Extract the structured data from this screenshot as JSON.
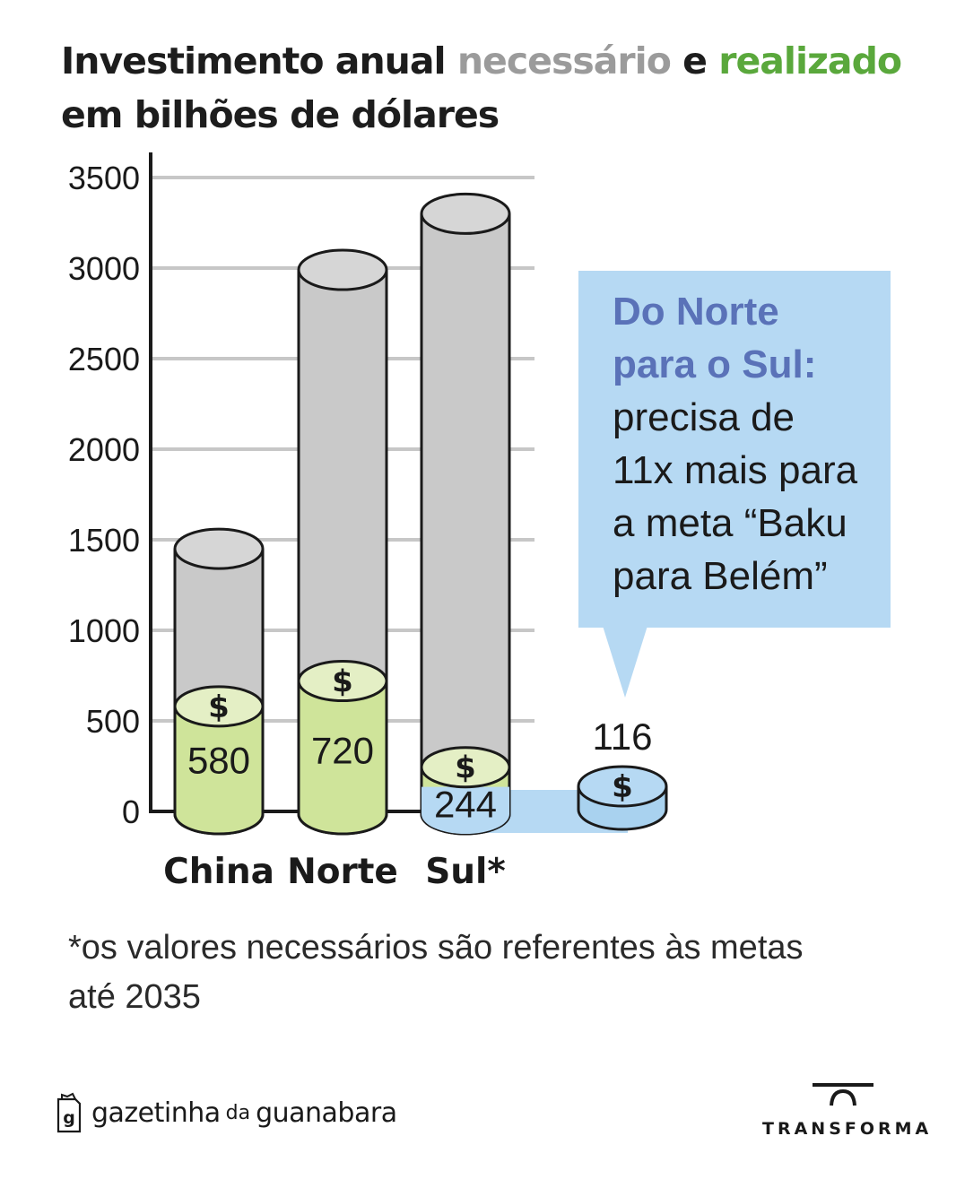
{
  "title": {
    "part1": "Investimento anual ",
    "part2": "necessário",
    "part3": " e ",
    "part4": "realizado",
    "line2": "em bilhões de dólares"
  },
  "colors": {
    "necessary": "#c9c9c9",
    "realized": "#cfe49a",
    "realized_dark": "#b5d26a",
    "gap": "#b6d9f3",
    "title_grey": "#9b9b9b",
    "title_green": "#5aa83c",
    "callout_head": "#5a72b8"
  },
  "chart_data": {
    "type": "bar",
    "title": "Investimento anual necessário e realizado em bilhões de dólares",
    "categories": [
      "China",
      "Norte",
      "Sul*"
    ],
    "series": [
      {
        "name": "necessário",
        "values": [
          1450,
          2990,
          3300
        ]
      },
      {
        "name": "realizado",
        "values": [
          580,
          720,
          244
        ]
      }
    ],
    "value_labels": [
      "580",
      "720",
      "244"
    ],
    "yticks": [
      "0",
      "500",
      "1000",
      "1500",
      "2000",
      "2500",
      "3000",
      "3500"
    ],
    "ylim": [
      0,
      3500
    ],
    "extra_coin": {
      "value": 116,
      "label": "116"
    },
    "grid": true,
    "icon": "dollar-coin-icon"
  },
  "callout": {
    "head_line1": "Do Norte",
    "head_line2": "para o Sul:",
    "body_line1": "precisa de",
    "body_line2": "11x mais para",
    "body_line3": "a meta “Baku",
    "body_line4": "para Belém”"
  },
  "footnote": {
    "line1": "*os valores necessários são referentes às metas",
    "line2": "até 2035"
  },
  "brands": {
    "left_name1": "gazetinha",
    "left_small": "da",
    "left_name2": "guanabara",
    "right": "TRANSFORMA"
  }
}
